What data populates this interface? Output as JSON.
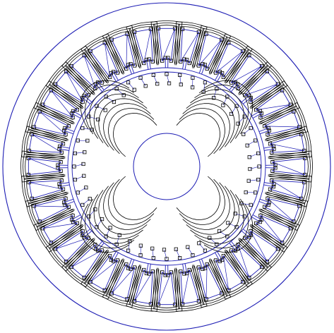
{
  "figure": {
    "kind": "motor-cross-section-fem-mesh",
    "stator_slot_count": 36,
    "rotor_pole_count": 4,
    "colors": {
      "background": "#ffffff",
      "geometry": "#1c1cb4",
      "flux_lines": "#000000",
      "nodes": "#000000"
    }
  }
}
